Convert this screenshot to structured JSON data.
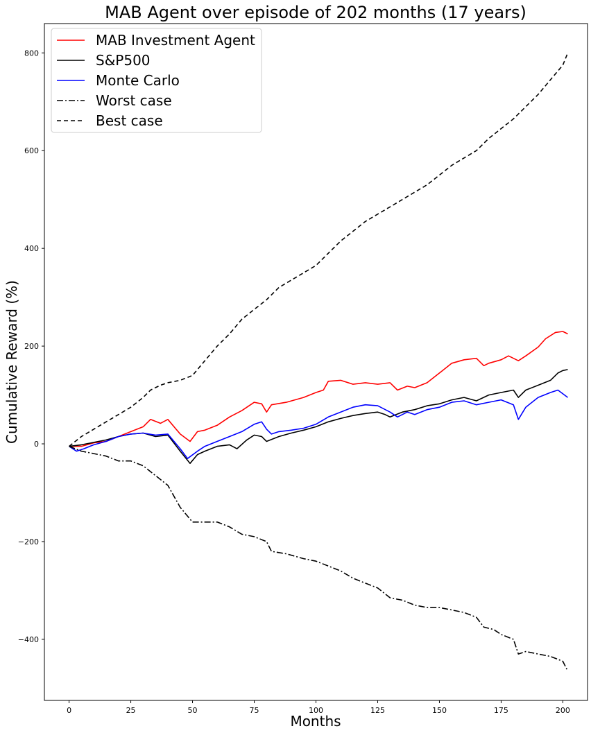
{
  "chart_data": {
    "type": "line",
    "title": "MAB Agent over episode of 202 months (17 years)",
    "xlabel": "Months",
    "ylabel": "Cumulative Reward (%)",
    "xlim": [
      -10,
      210
    ],
    "ylim": [
      -525,
      860
    ],
    "xticks": [
      0,
      25,
      50,
      75,
      100,
      125,
      150,
      175,
      200
    ],
    "yticks": [
      -400,
      -200,
      0,
      200,
      400,
      600,
      800
    ],
    "grid": false,
    "legend_position": "upper-left",
    "series": [
      {
        "name": "MAB Investment Agent",
        "color": "#ff0000",
        "style": "solid",
        "points": [
          [
            0,
            -5
          ],
          [
            5,
            -5
          ],
          [
            10,
            2
          ],
          [
            15,
            5
          ],
          [
            20,
            15
          ],
          [
            25,
            25
          ],
          [
            30,
            35
          ],
          [
            33,
            50
          ],
          [
            37,
            42
          ],
          [
            40,
            50
          ],
          [
            45,
            20
          ],
          [
            49,
            5
          ],
          [
            52,
            25
          ],
          [
            55,
            28
          ],
          [
            60,
            38
          ],
          [
            65,
            55
          ],
          [
            70,
            68
          ],
          [
            75,
            85
          ],
          [
            78,
            82
          ],
          [
            80,
            65
          ],
          [
            82,
            80
          ],
          [
            88,
            85
          ],
          [
            95,
            95
          ],
          [
            100,
            105
          ],
          [
            103,
            110
          ],
          [
            105,
            128
          ],
          [
            110,
            130
          ],
          [
            115,
            122
          ],
          [
            120,
            125
          ],
          [
            125,
            122
          ],
          [
            130,
            125
          ],
          [
            133,
            110
          ],
          [
            137,
            118
          ],
          [
            140,
            115
          ],
          [
            145,
            125
          ],
          [
            150,
            145
          ],
          [
            155,
            165
          ],
          [
            160,
            172
          ],
          [
            165,
            175
          ],
          [
            168,
            160
          ],
          [
            170,
            165
          ],
          [
            175,
            172
          ],
          [
            178,
            180
          ],
          [
            182,
            170
          ],
          [
            185,
            180
          ],
          [
            190,
            198
          ],
          [
            193,
            215
          ],
          [
            197,
            228
          ],
          [
            200,
            230
          ],
          [
            202,
            225
          ]
        ]
      },
      {
        "name": "S&P500",
        "color": "#000000",
        "style": "solid",
        "points": [
          [
            0,
            -5
          ],
          [
            5,
            -2
          ],
          [
            10,
            3
          ],
          [
            15,
            8
          ],
          [
            20,
            15
          ],
          [
            25,
            20
          ],
          [
            30,
            22
          ],
          [
            35,
            15
          ],
          [
            40,
            18
          ],
          [
            45,
            -15
          ],
          [
            49,
            -40
          ],
          [
            52,
            -22
          ],
          [
            55,
            -15
          ],
          [
            60,
            -5
          ],
          [
            65,
            -2
          ],
          [
            68,
            -10
          ],
          [
            72,
            8
          ],
          [
            75,
            18
          ],
          [
            78,
            15
          ],
          [
            80,
            5
          ],
          [
            85,
            15
          ],
          [
            90,
            22
          ],
          [
            95,
            28
          ],
          [
            100,
            35
          ],
          [
            105,
            45
          ],
          [
            110,
            52
          ],
          [
            115,
            58
          ],
          [
            120,
            62
          ],
          [
            125,
            65
          ],
          [
            128,
            60
          ],
          [
            130,
            55
          ],
          [
            135,
            65
          ],
          [
            140,
            70
          ],
          [
            145,
            78
          ],
          [
            150,
            82
          ],
          [
            155,
            90
          ],
          [
            160,
            95
          ],
          [
            165,
            88
          ],
          [
            170,
            100
          ],
          [
            175,
            105
          ],
          [
            180,
            110
          ],
          [
            182,
            95
          ],
          [
            185,
            110
          ],
          [
            190,
            120
          ],
          [
            195,
            130
          ],
          [
            198,
            145
          ],
          [
            200,
            150
          ],
          [
            202,
            152
          ]
        ]
      },
      {
        "name": "Monte Carlo",
        "color": "#0000ff",
        "style": "solid",
        "points": [
          [
            0,
            -5
          ],
          [
            3,
            -15
          ],
          [
            6,
            -10
          ],
          [
            10,
            -2
          ],
          [
            15,
            5
          ],
          [
            20,
            15
          ],
          [
            25,
            20
          ],
          [
            30,
            22
          ],
          [
            35,
            18
          ],
          [
            40,
            20
          ],
          [
            45,
            -10
          ],
          [
            48,
            -30
          ],
          [
            52,
            -15
          ],
          [
            55,
            -5
          ],
          [
            60,
            5
          ],
          [
            65,
            15
          ],
          [
            70,
            25
          ],
          [
            75,
            40
          ],
          [
            78,
            45
          ],
          [
            80,
            30
          ],
          [
            82,
            20
          ],
          [
            85,
            25
          ],
          [
            90,
            28
          ],
          [
            95,
            32
          ],
          [
            100,
            40
          ],
          [
            105,
            55
          ],
          [
            110,
            65
          ],
          [
            115,
            75
          ],
          [
            120,
            80
          ],
          [
            125,
            78
          ],
          [
            130,
            65
          ],
          [
            133,
            55
          ],
          [
            137,
            65
          ],
          [
            140,
            60
          ],
          [
            145,
            70
          ],
          [
            150,
            75
          ],
          [
            155,
            85
          ],
          [
            160,
            88
          ],
          [
            165,
            80
          ],
          [
            170,
            85
          ],
          [
            175,
            90
          ],
          [
            180,
            80
          ],
          [
            182,
            50
          ],
          [
            185,
            75
          ],
          [
            190,
            95
          ],
          [
            195,
            105
          ],
          [
            198,
            110
          ],
          [
            202,
            95
          ]
        ]
      },
      {
        "name": "Worst case",
        "color": "#000000",
        "style": "dashdot",
        "points": [
          [
            0,
            -5
          ],
          [
            5,
            -15
          ],
          [
            10,
            -20
          ],
          [
            15,
            -25
          ],
          [
            20,
            -35
          ],
          [
            25,
            -35
          ],
          [
            30,
            -45
          ],
          [
            35,
            -65
          ],
          [
            40,
            -85
          ],
          [
            45,
            -130
          ],
          [
            50,
            -160
          ],
          [
            55,
            -160
          ],
          [
            60,
            -160
          ],
          [
            65,
            -170
          ],
          [
            70,
            -185
          ],
          [
            75,
            -190
          ],
          [
            80,
            -200
          ],
          [
            82,
            -220
          ],
          [
            88,
            -225
          ],
          [
            95,
            -235
          ],
          [
            100,
            -240
          ],
          [
            105,
            -250
          ],
          [
            110,
            -260
          ],
          [
            115,
            -275
          ],
          [
            120,
            -285
          ],
          [
            125,
            -295
          ],
          [
            130,
            -315
          ],
          [
            135,
            -320
          ],
          [
            140,
            -330
          ],
          [
            145,
            -335
          ],
          [
            150,
            -335
          ],
          [
            155,
            -340
          ],
          [
            160,
            -345
          ],
          [
            165,
            -355
          ],
          [
            168,
            -375
          ],
          [
            172,
            -380
          ],
          [
            175,
            -390
          ],
          [
            180,
            -400
          ],
          [
            182,
            -430
          ],
          [
            185,
            -425
          ],
          [
            190,
            -430
          ],
          [
            195,
            -435
          ],
          [
            200,
            -445
          ],
          [
            202,
            -465
          ]
        ]
      },
      {
        "name": "Best case",
        "color": "#000000",
        "style": "dashed",
        "points": [
          [
            0,
            -5
          ],
          [
            5,
            15
          ],
          [
            10,
            30
          ],
          [
            15,
            45
          ],
          [
            20,
            60
          ],
          [
            25,
            75
          ],
          [
            30,
            95
          ],
          [
            33,
            110
          ],
          [
            37,
            120
          ],
          [
            40,
            125
          ],
          [
            45,
            130
          ],
          [
            50,
            140
          ],
          [
            55,
            170
          ],
          [
            60,
            200
          ],
          [
            65,
            225
          ],
          [
            70,
            255
          ],
          [
            75,
            275
          ],
          [
            80,
            295
          ],
          [
            85,
            320
          ],
          [
            90,
            335
          ],
          [
            95,
            350
          ],
          [
            100,
            365
          ],
          [
            105,
            390
          ],
          [
            110,
            415
          ],
          [
            115,
            435
          ],
          [
            120,
            455
          ],
          [
            125,
            470
          ],
          [
            130,
            485
          ],
          [
            135,
            500
          ],
          [
            140,
            515
          ],
          [
            145,
            530
          ],
          [
            150,
            550
          ],
          [
            155,
            570
          ],
          [
            160,
            585
          ],
          [
            165,
            600
          ],
          [
            170,
            625
          ],
          [
            175,
            645
          ],
          [
            180,
            665
          ],
          [
            185,
            690
          ],
          [
            190,
            715
          ],
          [
            195,
            745
          ],
          [
            200,
            775
          ],
          [
            202,
            800
          ]
        ]
      }
    ]
  }
}
